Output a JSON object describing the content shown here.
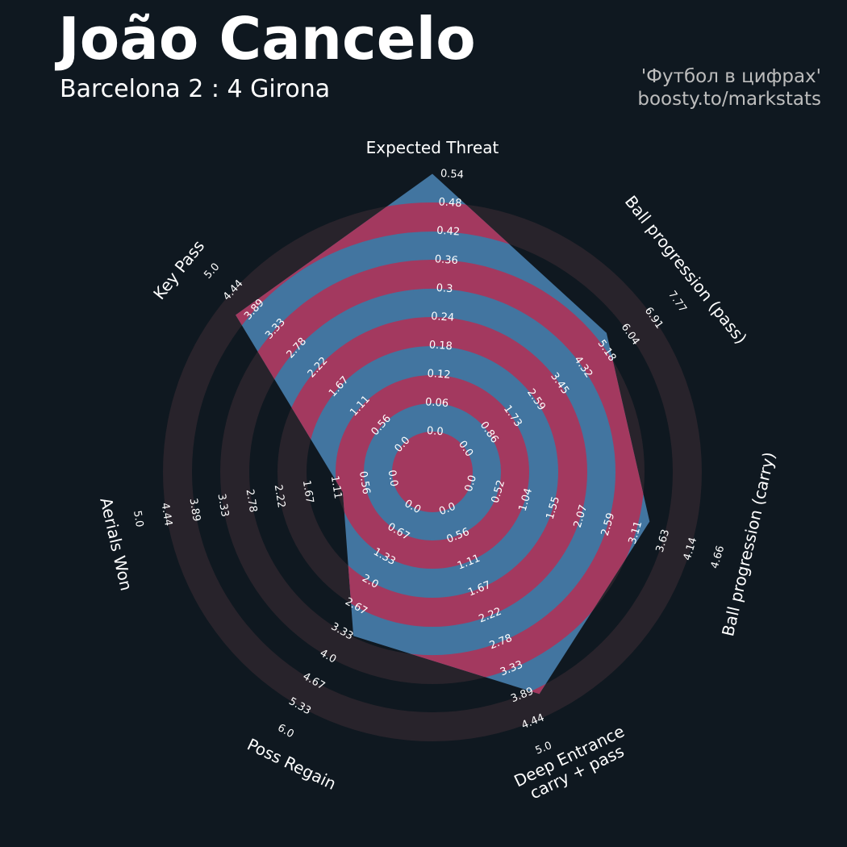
{
  "header": {
    "title": "João Cancelo",
    "subtitle": "Barcelona 2 : 4 Girona",
    "credit_line1": "'Футбол в цифрах'",
    "credit_line2": "boosty.to/markstats"
  },
  "colors": {
    "background": "#0f1820",
    "ring_dark": "#28232b",
    "ring_red": "#a3395f",
    "polygon_fill": "#4275a0"
  },
  "chart_data": {
    "type": "radar",
    "start_angle_deg": 90,
    "direction": "clockwise",
    "params": [
      {
        "name": "Expected Threat",
        "value": 0.54,
        "ticks": [
          "0.0",
          "0.06",
          "0.12",
          "0.18",
          "0.24",
          "0.3",
          "0.36",
          "0.42",
          "0.48",
          "0.54"
        ]
      },
      {
        "name": "Ball progression (pass)",
        "value": 5.5,
        "ticks": [
          "0.0",
          "0.86",
          "1.73",
          "2.59",
          "3.45",
          "4.32",
          "5.18",
          "6.04",
          "6.91",
          "7.77"
        ]
      },
      {
        "name": "Ball progression (carry)",
        "value": 3.3,
        "ticks": [
          "0.0",
          "0.52",
          "1.04",
          "1.55",
          "2.07",
          "2.59",
          "3.11",
          "3.63",
          "4.14",
          "4.66"
        ]
      },
      {
        "name": "Deep Entrance\ncarry + pass",
        "value": 4.0,
        "ticks": [
          "0.0",
          "0.56",
          "1.11",
          "1.67",
          "2.22",
          "2.78",
          "3.33",
          "3.89",
          "4.44",
          "5.0"
        ]
      },
      {
        "name": "Poss Regain",
        "value": 3.3,
        "ticks": [
          "0.0",
          "0.67",
          "1.33",
          "2.0",
          "2.67",
          "3.33",
          "4.0",
          "4.67",
          "5.33",
          "6.0"
        ]
      },
      {
        "name": "Aerials Won",
        "value": 1.0,
        "ticks": [
          "0.0",
          "0.56",
          "1.11",
          "1.67",
          "2.22",
          "2.78",
          "3.33",
          "3.89",
          "4.44",
          "5.0"
        ]
      },
      {
        "name": "Key Pass",
        "value": 4.1,
        "ticks": [
          "0.0",
          "0.56",
          "1.11",
          "1.67",
          "2.22",
          "2.78",
          "3.33",
          "3.89",
          "4.44",
          "5.0"
        ]
      }
    ]
  }
}
